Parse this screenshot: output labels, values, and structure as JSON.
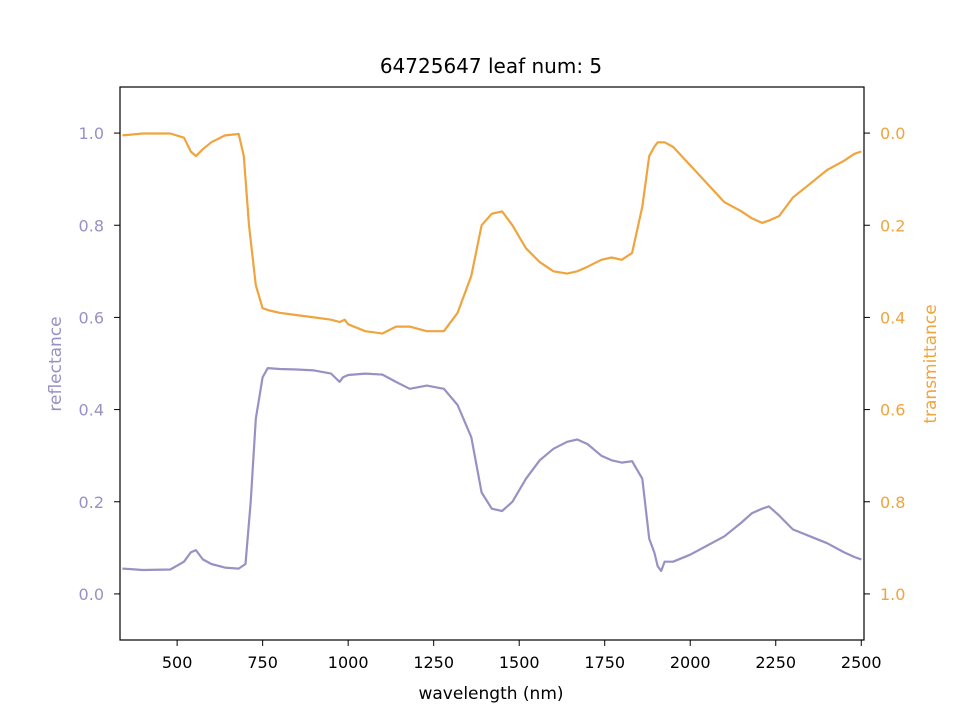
{
  "chart_data": {
    "type": "line",
    "title": "64725647 leaf num: 5",
    "xlabel": "wavelength (nm)",
    "ylabel_left": "reflectance",
    "ylabel_right": "transmittance",
    "xlim": [
      333,
      2508
    ],
    "ylim_left": [
      -0.1,
      1.1
    ],
    "ylim_right_inverted": [
      1.1,
      -0.1
    ],
    "x_ticks": [
      500,
      750,
      1000,
      1250,
      1500,
      1750,
      2000,
      2250,
      2500
    ],
    "y_ticks_left": [
      0.0,
      0.2,
      0.4,
      0.6,
      0.8,
      1.0
    ],
    "y_ticks_right": [
      0.0,
      0.2,
      0.4,
      0.6,
      0.8,
      1.0
    ],
    "y_tick_labels_left": [
      "0.0",
      "0.2",
      "0.4",
      "0.6",
      "0.8",
      "1.0"
    ],
    "y_tick_labels_right": [
      "0.0",
      "0.2",
      "0.4",
      "0.6",
      "0.8",
      "1.0"
    ],
    "grid": false,
    "colors": {
      "reflectance": "#9891c4",
      "transmittance": "#efa43e"
    },
    "series": [
      {
        "axis": "left",
        "x": [
          340,
          400,
          480,
          520,
          540,
          555,
          575,
          600,
          640,
          680,
          700,
          715,
          730,
          750,
          765,
          800,
          850,
          900,
          950,
          975,
          985,
          1000,
          1050,
          1100,
          1140,
          1180,
          1230,
          1280,
          1320,
          1360,
          1390,
          1420,
          1450,
          1480,
          1520,
          1560,
          1600,
          1640,
          1670,
          1700,
          1740,
          1770,
          1800,
          1830,
          1860,
          1880,
          1895,
          1905,
          1915,
          1925,
          1950,
          2000,
          2050,
          2100,
          2150,
          2180,
          2210,
          2230,
          2260,
          2300,
          2350,
          2400,
          2450,
          2480,
          2500
        ],
        "y": [
          0.055,
          0.052,
          0.053,
          0.07,
          0.09,
          0.095,
          0.075,
          0.065,
          0.057,
          0.055,
          0.065,
          0.2,
          0.38,
          0.47,
          0.49,
          0.488,
          0.487,
          0.485,
          0.478,
          0.46,
          0.47,
          0.475,
          0.478,
          0.476,
          0.46,
          0.445,
          0.452,
          0.445,
          0.41,
          0.34,
          0.22,
          0.185,
          0.18,
          0.2,
          0.25,
          0.29,
          0.315,
          0.33,
          0.335,
          0.325,
          0.3,
          0.29,
          0.285,
          0.288,
          0.25,
          0.12,
          0.09,
          0.06,
          0.05,
          0.07,
          0.07,
          0.085,
          0.105,
          0.125,
          0.155,
          0.175,
          0.185,
          0.19,
          0.17,
          0.14,
          0.125,
          0.11,
          0.09,
          0.08,
          0.075
        ]
      },
      {
        "axis": "right",
        "x": [
          340,
          400,
          480,
          520,
          540,
          555,
          575,
          600,
          640,
          680,
          695,
          710,
          730,
          750,
          770,
          800,
          850,
          900,
          950,
          975,
          990,
          1000,
          1050,
          1100,
          1140,
          1180,
          1230,
          1280,
          1320,
          1360,
          1390,
          1420,
          1450,
          1480,
          1520,
          1560,
          1600,
          1640,
          1670,
          1700,
          1740,
          1770,
          1800,
          1830,
          1860,
          1880,
          1895,
          1905,
          1915,
          1925,
          1950,
          2000,
          2050,
          2100,
          2150,
          2180,
          2210,
          2230,
          2260,
          2300,
          2350,
          2400,
          2450,
          2480,
          2500
        ],
        "y": [
          0.005,
          0.001,
          0.001,
          0.01,
          0.04,
          0.05,
          0.035,
          0.02,
          0.005,
          0.002,
          0.05,
          0.2,
          0.33,
          0.38,
          0.385,
          0.39,
          0.395,
          0.4,
          0.405,
          0.41,
          0.405,
          0.415,
          0.43,
          0.435,
          0.42,
          0.42,
          0.43,
          0.43,
          0.39,
          0.31,
          0.2,
          0.175,
          0.17,
          0.2,
          0.25,
          0.28,
          0.3,
          0.305,
          0.3,
          0.29,
          0.275,
          0.27,
          0.275,
          0.26,
          0.16,
          0.05,
          0.03,
          0.02,
          0.02,
          0.02,
          0.03,
          0.07,
          0.11,
          0.15,
          0.17,
          0.185,
          0.195,
          0.19,
          0.18,
          0.14,
          0.11,
          0.08,
          0.06,
          0.045,
          0.04
        ]
      }
    ]
  }
}
